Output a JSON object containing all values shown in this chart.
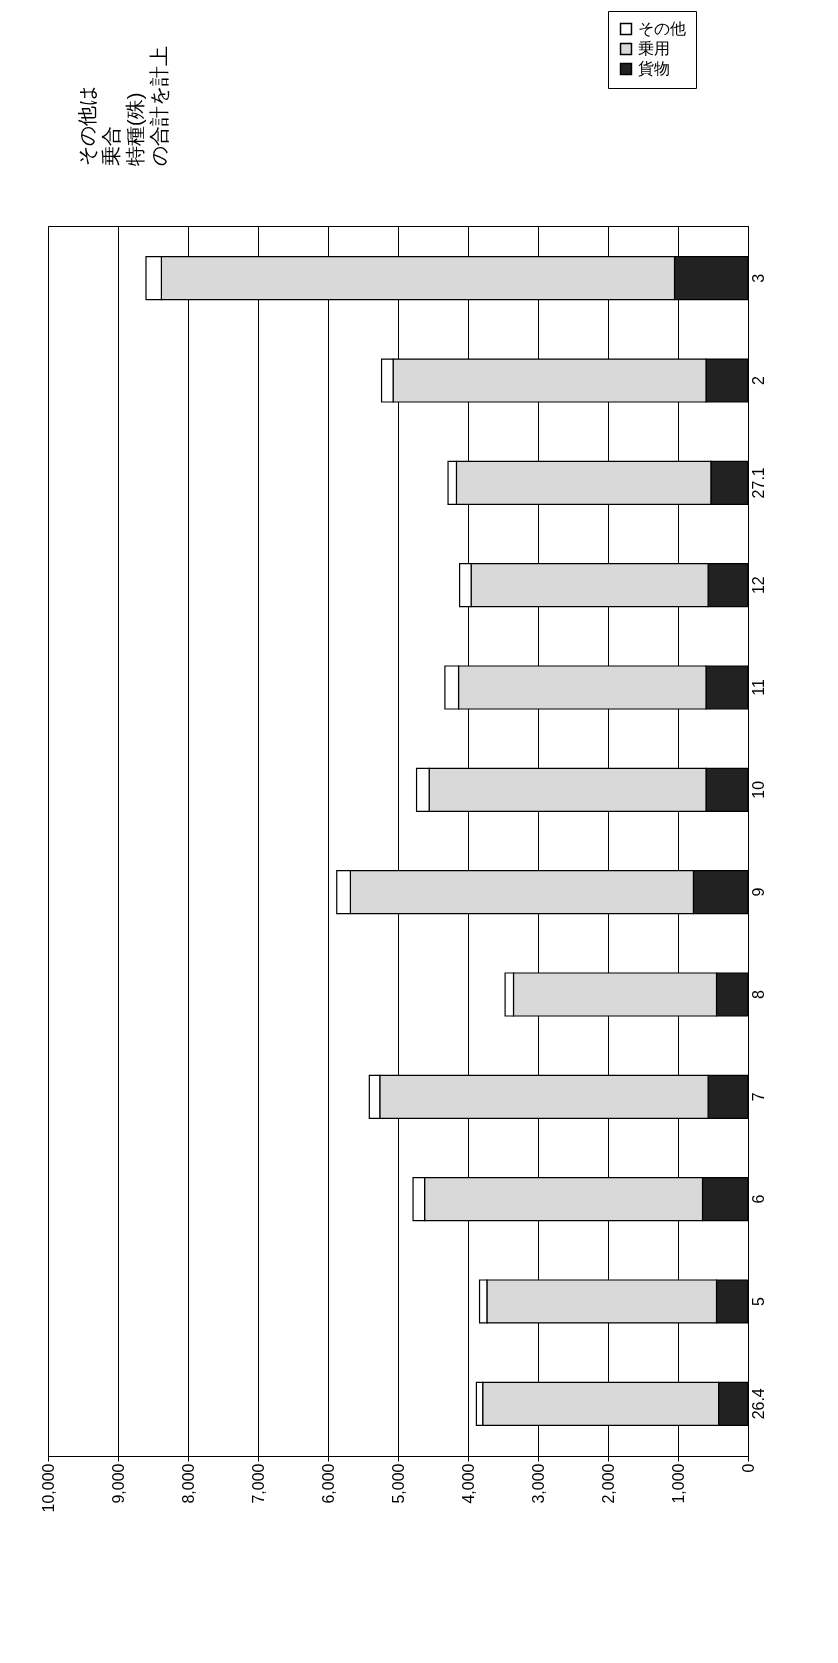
{
  "chart_data": {
    "type": "bar",
    "orientation": "horizontal",
    "stacked": true,
    "categories": [
      "3",
      "2",
      "27.1",
      "12",
      "11",
      "10",
      "9",
      "8",
      "7",
      "6",
      "5",
      "26.4"
    ],
    "series": [
      {
        "name": "貨物",
        "color": "#222222",
        "values": [
          1050,
          600,
          530,
          570,
          600,
          600,
          780,
          450,
          570,
          650,
          450,
          420
        ]
      },
      {
        "name": "乗用",
        "color": "#d9d9d9",
        "values": [
          7330,
          4470,
          3635,
          3385,
          3535,
          3955,
          4900,
          2900,
          4690,
          3970,
          3280,
          3370
        ]
      },
      {
        "name": "その他",
        "color": "#ffffff",
        "values": [
          220,
          165,
          120,
          165,
          195,
          180,
          195,
          120,
          150,
          165,
          105,
          90
        ]
      }
    ],
    "xlim": [
      10000,
      0
    ],
    "xticks": [
      {
        "value": 10000,
        "label": "10,000"
      },
      {
        "value": 9000,
        "label": "9,000"
      },
      {
        "value": 8000,
        "label": "8,000"
      },
      {
        "value": 7000,
        "label": "7,000"
      },
      {
        "value": 6000,
        "label": "6,000"
      },
      {
        "value": 5000,
        "label": "5,000"
      },
      {
        "value": 4000,
        "label": "4,000"
      },
      {
        "value": 3000,
        "label": "3,000"
      },
      {
        "value": 2000,
        "label": "2,000"
      },
      {
        "value": 1000,
        "label": "1,000"
      },
      0
    ],
    "grid": "x",
    "legend": "top right",
    "annotations": [
      "その他は",
      "乗合",
      "特種(殊)",
      "の合計を計上"
    ]
  }
}
